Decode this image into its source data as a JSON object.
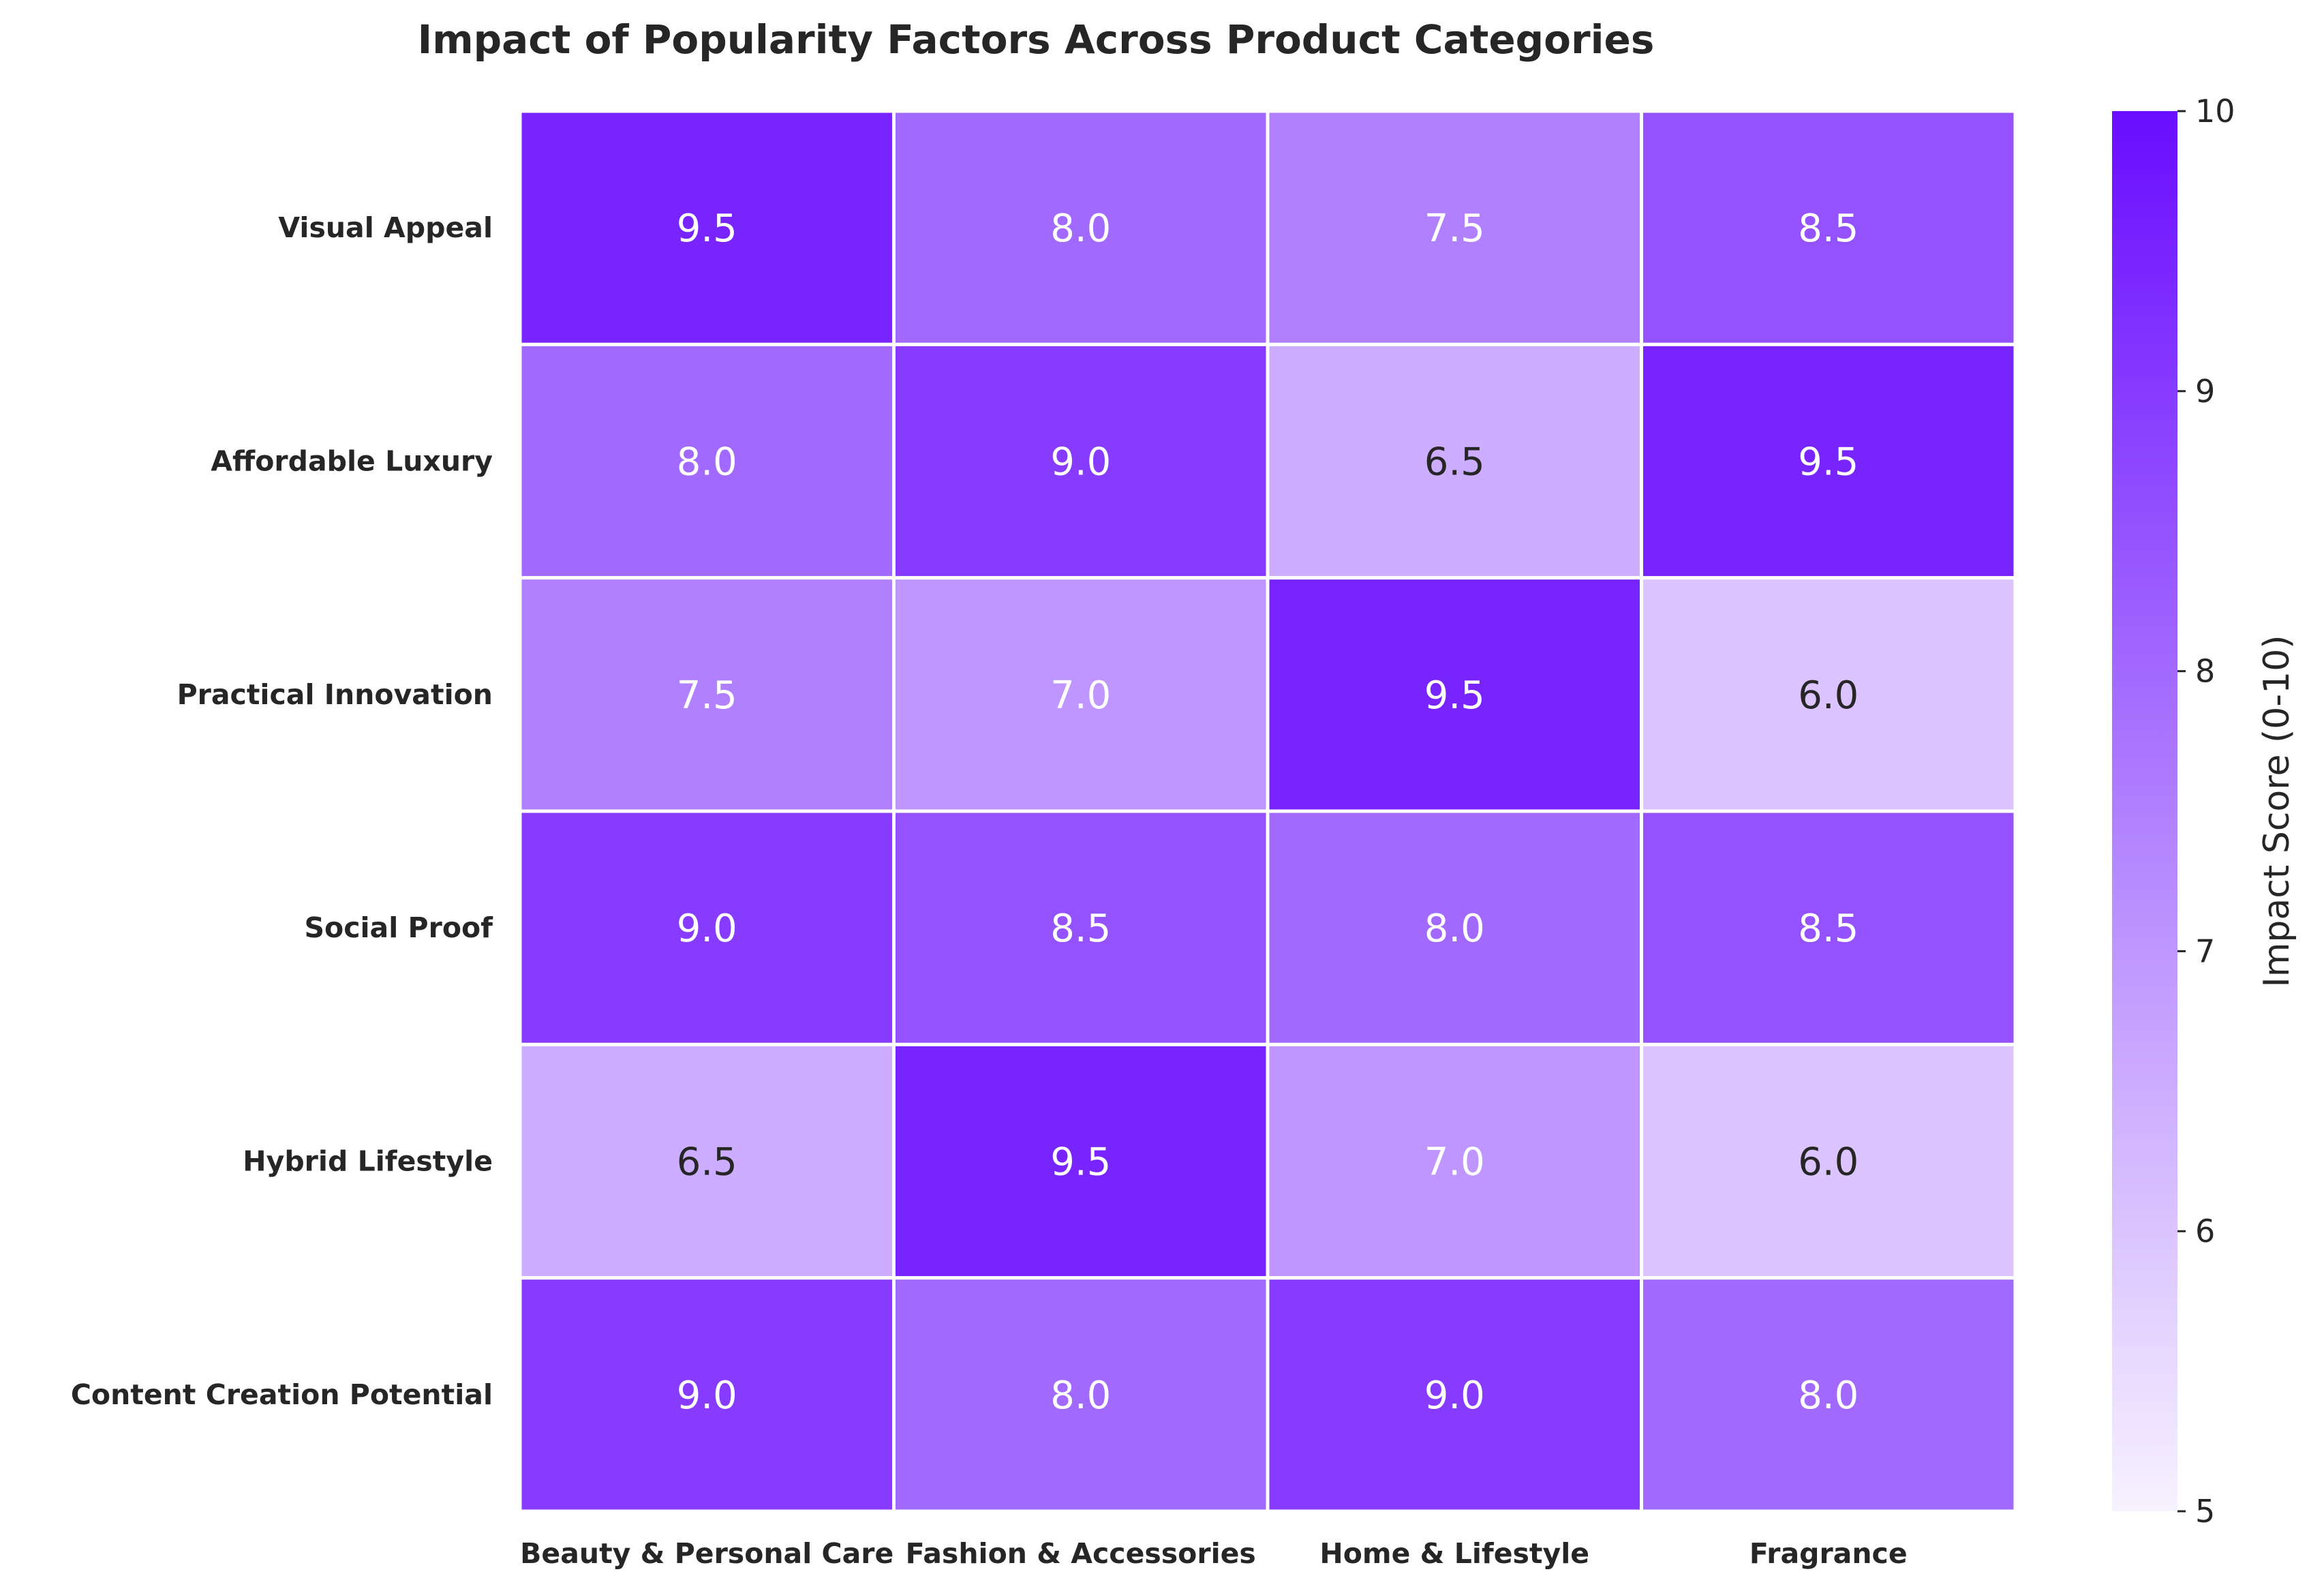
{
  "chart_data": {
    "type": "heatmap",
    "title": "Impact of Popularity Factors Across Product Categories",
    "rows": [
      "Visual Appeal",
      "Affordable Luxury",
      "Practical Innovation",
      "Social Proof",
      "Hybrid Lifestyle",
      "Content Creation Potential"
    ],
    "columns": [
      "Beauty & Personal Care",
      "Fashion & Accessories",
      "Home & Lifestyle",
      "Fragrance"
    ],
    "values": [
      [
        9.5,
        8.0,
        7.5,
        8.5
      ],
      [
        8.0,
        9.0,
        6.5,
        9.5
      ],
      [
        7.5,
        7.0,
        9.5,
        6.0
      ],
      [
        9.0,
        8.5,
        8.0,
        8.5
      ],
      [
        6.5,
        9.5,
        7.0,
        6.0
      ],
      [
        9.0,
        8.0,
        9.0,
        8.0
      ]
    ],
    "value_labels": [
      [
        "9.5",
        "8.0",
        "7.5",
        "8.5"
      ],
      [
        "8.0",
        "9.0",
        "6.5",
        "9.5"
      ],
      [
        "7.5",
        "7.0",
        "9.5",
        "6.0"
      ],
      [
        "9.0",
        "8.5",
        "8.0",
        "8.5"
      ],
      [
        "6.5",
        "9.5",
        "7.0",
        "6.0"
      ],
      [
        "9.0",
        "8.0",
        "9.0",
        "8.0"
      ]
    ],
    "colorbar": {
      "label": "Impact Score (0-10)",
      "range": [
        5,
        10
      ],
      "ticks": [
        "5",
        "6",
        "7",
        "8",
        "9",
        "10"
      ],
      "color_low": "#f7f2ff",
      "color_high": "#6a0dff"
    }
  }
}
